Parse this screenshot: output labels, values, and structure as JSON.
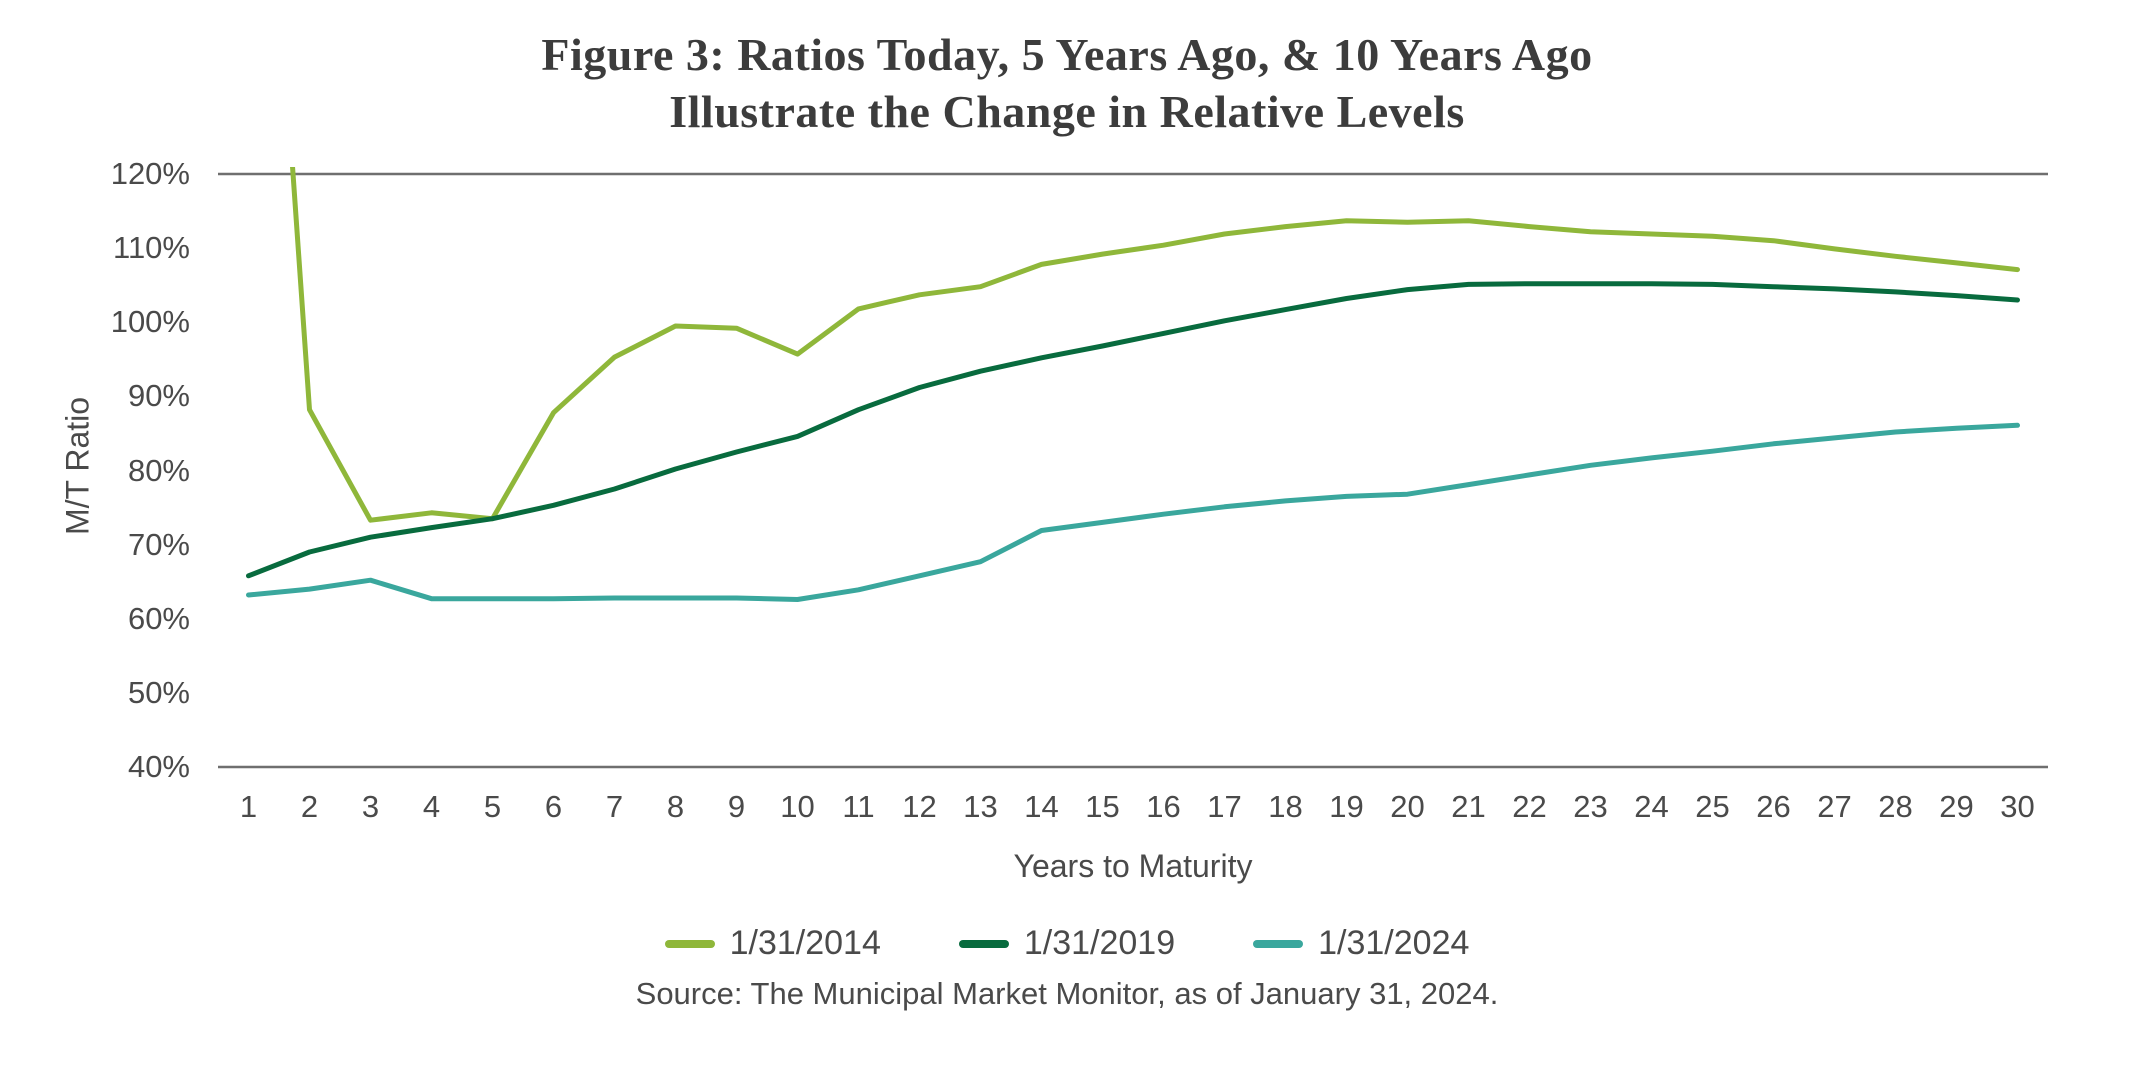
{
  "figure": {
    "title_line1": "Figure 3: Ratios Today, 5 Years Ago, & 10 Years Ago",
    "title_line2": "Illustrate the Change in Relative Levels",
    "source": "Source: The Municipal Market Monitor, as of January 31, 2024."
  },
  "colors": {
    "background": "#ffffff",
    "title_text": "#3c3c3c",
    "axis_text": "#4a4a4a",
    "frame_line": "#6f6f6f",
    "series_2014": "#8fb73a",
    "series_2019": "#086b3e",
    "series_2024": "#3aa79d"
  },
  "chart_data": {
    "type": "line",
    "title": "Figure 3: Ratios Today, 5 Years Ago, & 10 Years Ago Illustrate the Change in Relative Levels",
    "xlabel": "Years to Maturity",
    "ylabel": "M/T Ratio",
    "ylim": [
      40,
      120
    ],
    "xlim_categories": 30,
    "grid": "no interior gridlines; horizontal frame lines at 120% (top) and 40% (bottom) only",
    "legend_position": "bottom center",
    "x": [
      1,
      2,
      3,
      4,
      5,
      6,
      7,
      8,
      9,
      10,
      11,
      12,
      13,
      14,
      15,
      16,
      17,
      18,
      19,
      20,
      21,
      22,
      23,
      24,
      25,
      26,
      27,
      28,
      29,
      30
    ],
    "x_tick_labels": [
      "1",
      "2",
      "3",
      "4",
      "5",
      "6",
      "7",
      "8",
      "9",
      "10",
      "11",
      "12",
      "13",
      "14",
      "15",
      "16",
      "17",
      "18",
      "19",
      "20",
      "21",
      "22",
      "23",
      "24",
      "25",
      "26",
      "27",
      "28",
      "29",
      "30"
    ],
    "y_ticks": [
      {
        "v": 120,
        "label": "120%"
      },
      {
        "v": 110,
        "label": "110%"
      },
      {
        "v": 100,
        "label": "100%"
      },
      {
        "v": 90,
        "label": "90%"
      },
      {
        "v": 80,
        "label": "80%"
      },
      {
        "v": 70,
        "label": "70%"
      },
      {
        "v": 60,
        "label": "60%"
      },
      {
        "v": 50,
        "label": "50%"
      },
      {
        "v": 40,
        "label": "40%"
      }
    ],
    "series": [
      {
        "name": "1/31/2014",
        "color": "#8fb73a",
        "note": "year-1 value is off-scale high and is clipped by the 120% chart top",
        "values": [
          206,
          88.2,
          73.3,
          74.3,
          73.5,
          87.8,
          95.3,
          99.5,
          99.2,
          95.7,
          101.8,
          103.7,
          104.8,
          107.8,
          109.2,
          110.4,
          111.9,
          112.9,
          113.7,
          113.5,
          113.7,
          112.9,
          112.2,
          111.9,
          111.6,
          111.0,
          109.9,
          108.9,
          108.0,
          107.1
        ]
      },
      {
        "name": "1/31/2019",
        "color": "#086b3e",
        "values": [
          65.8,
          69.0,
          71.0,
          72.3,
          73.5,
          75.3,
          77.5,
          80.2,
          82.5,
          84.6,
          88.2,
          91.2,
          93.4,
          95.2,
          96.8,
          98.5,
          100.2,
          101.7,
          103.2,
          104.4,
          105.1,
          105.2,
          105.2,
          105.2,
          105.1,
          104.8,
          104.5,
          104.1,
          103.6,
          103.0
        ]
      },
      {
        "name": "1/31/2024",
        "color": "#3aa79d",
        "values": [
          63.2,
          64.0,
          65.2,
          62.7,
          62.7,
          62.7,
          62.8,
          62.8,
          62.8,
          62.6,
          63.9,
          65.8,
          67.7,
          71.9,
          73.0,
          74.1,
          75.1,
          75.9,
          76.5,
          76.8,
          78.1,
          79.4,
          80.7,
          81.7,
          82.6,
          83.6,
          84.4,
          85.2,
          85.7,
          86.1
        ]
      }
    ]
  }
}
